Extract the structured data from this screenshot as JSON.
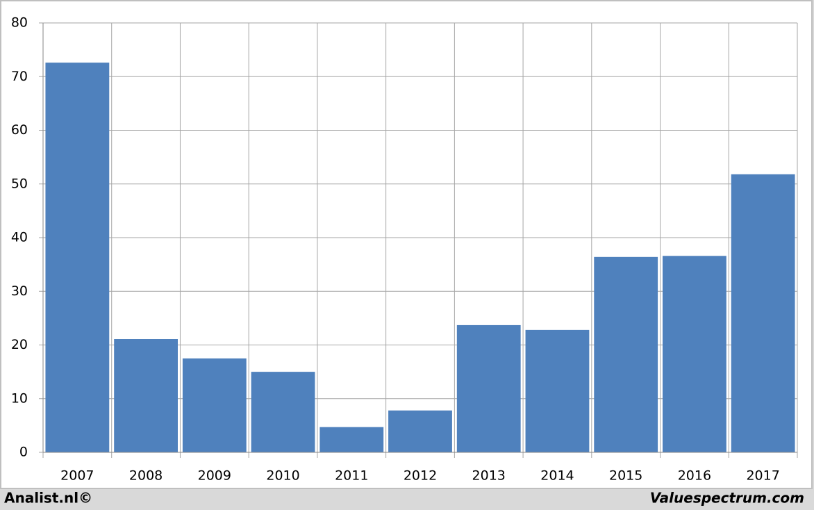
{
  "chart_data": {
    "type": "bar",
    "categories": [
      "2007",
      "2008",
      "2009",
      "2010",
      "2011",
      "2012",
      "2013",
      "2014",
      "2015",
      "2016",
      "2017"
    ],
    "values": [
      72.6,
      21.1,
      17.5,
      15.0,
      4.7,
      7.8,
      23.7,
      22.8,
      36.4,
      36.6,
      51.8
    ],
    "color": "#4f81bd",
    "ylim": [
      0,
      80
    ],
    "yticks": [
      0,
      10,
      20,
      30,
      40,
      50,
      60,
      70,
      80
    ],
    "grid": true,
    "footer": {
      "left": "Analist.nl©",
      "right": "Valuespectrum.com"
    }
  }
}
